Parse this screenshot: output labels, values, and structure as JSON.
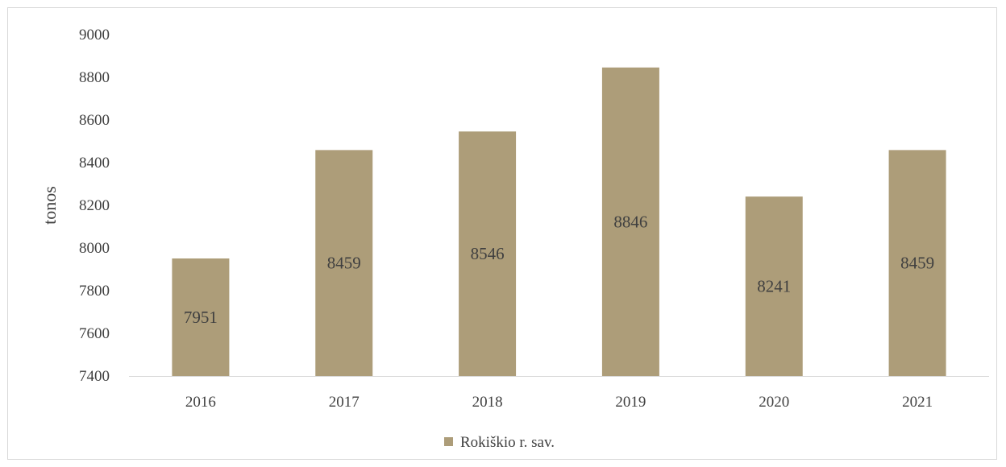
{
  "chart_data": {
    "type": "bar",
    "categories": [
      "2016",
      "2017",
      "2018",
      "2019",
      "2020",
      "2021"
    ],
    "series": [
      {
        "name": "Rokiškio r. sav.",
        "values": [
          7951,
          8459,
          8546,
          8846,
          8241,
          8459
        ]
      }
    ],
    "data_labels": [
      "7951",
      "8459",
      "8546",
      "8846",
      "8241",
      "8459"
    ],
    "ylabel": "tonos",
    "ylim": [
      7400,
      9000
    ],
    "yticks": [
      7400,
      7600,
      7800,
      8000,
      8200,
      8400,
      8600,
      8800,
      9000
    ],
    "ytick_labels": [
      "7400",
      "7600",
      "7800",
      "8000",
      "8200",
      "8400",
      "8600",
      "8800",
      "9000"
    ],
    "grid": false,
    "legend_position": "bottom",
    "bar_color": "#ad9d79"
  }
}
